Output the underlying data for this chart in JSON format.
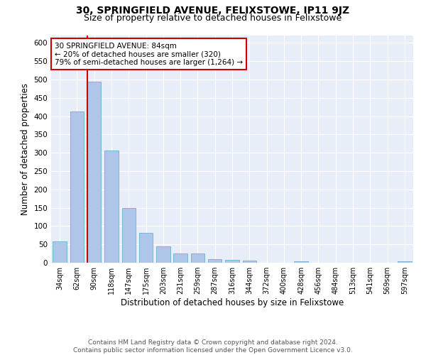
{
  "title1": "30, SPRINGFIELD AVENUE, FELIXSTOWE, IP11 9JZ",
  "title2": "Size of property relative to detached houses in Felixstowe",
  "xlabel": "Distribution of detached houses by size in Felixstowe",
  "ylabel": "Number of detached properties",
  "categories": [
    "34sqm",
    "62sqm",
    "90sqm",
    "118sqm",
    "147sqm",
    "175sqm",
    "203sqm",
    "231sqm",
    "259sqm",
    "287sqm",
    "316sqm",
    "344sqm",
    "372sqm",
    "400sqm",
    "428sqm",
    "456sqm",
    "484sqm",
    "513sqm",
    "541sqm",
    "569sqm",
    "597sqm"
  ],
  "values": [
    58,
    413,
    495,
    307,
    150,
    82,
    45,
    25,
    25,
    10,
    8,
    5,
    0,
    0,
    4,
    0,
    0,
    0,
    0,
    0,
    4
  ],
  "bar_color": "#aec6e8",
  "bar_edge_color": "#6aaed6",
  "highlight_index": 2,
  "highlight_line_color": "#cc0000",
  "annotation_text": "30 SPRINGFIELD AVENUE: 84sqm\n← 20% of detached houses are smaller (320)\n79% of semi-detached houses are larger (1,264) →",
  "annotation_box_color": "#ffffff",
  "annotation_box_edge_color": "#cc0000",
  "ylim": [
    0,
    620
  ],
  "yticks": [
    0,
    50,
    100,
    150,
    200,
    250,
    300,
    350,
    400,
    450,
    500,
    550,
    600
  ],
  "plot_bg_color": "#e8eef8",
  "footer_text": "Contains HM Land Registry data © Crown copyright and database right 2024.\nContains public sector information licensed under the Open Government Licence v3.0.",
  "title1_fontsize": 10,
  "title2_fontsize": 9,
  "xlabel_fontsize": 8.5,
  "ylabel_fontsize": 8.5,
  "annot_fontsize": 7.5,
  "footer_fontsize": 6.5
}
